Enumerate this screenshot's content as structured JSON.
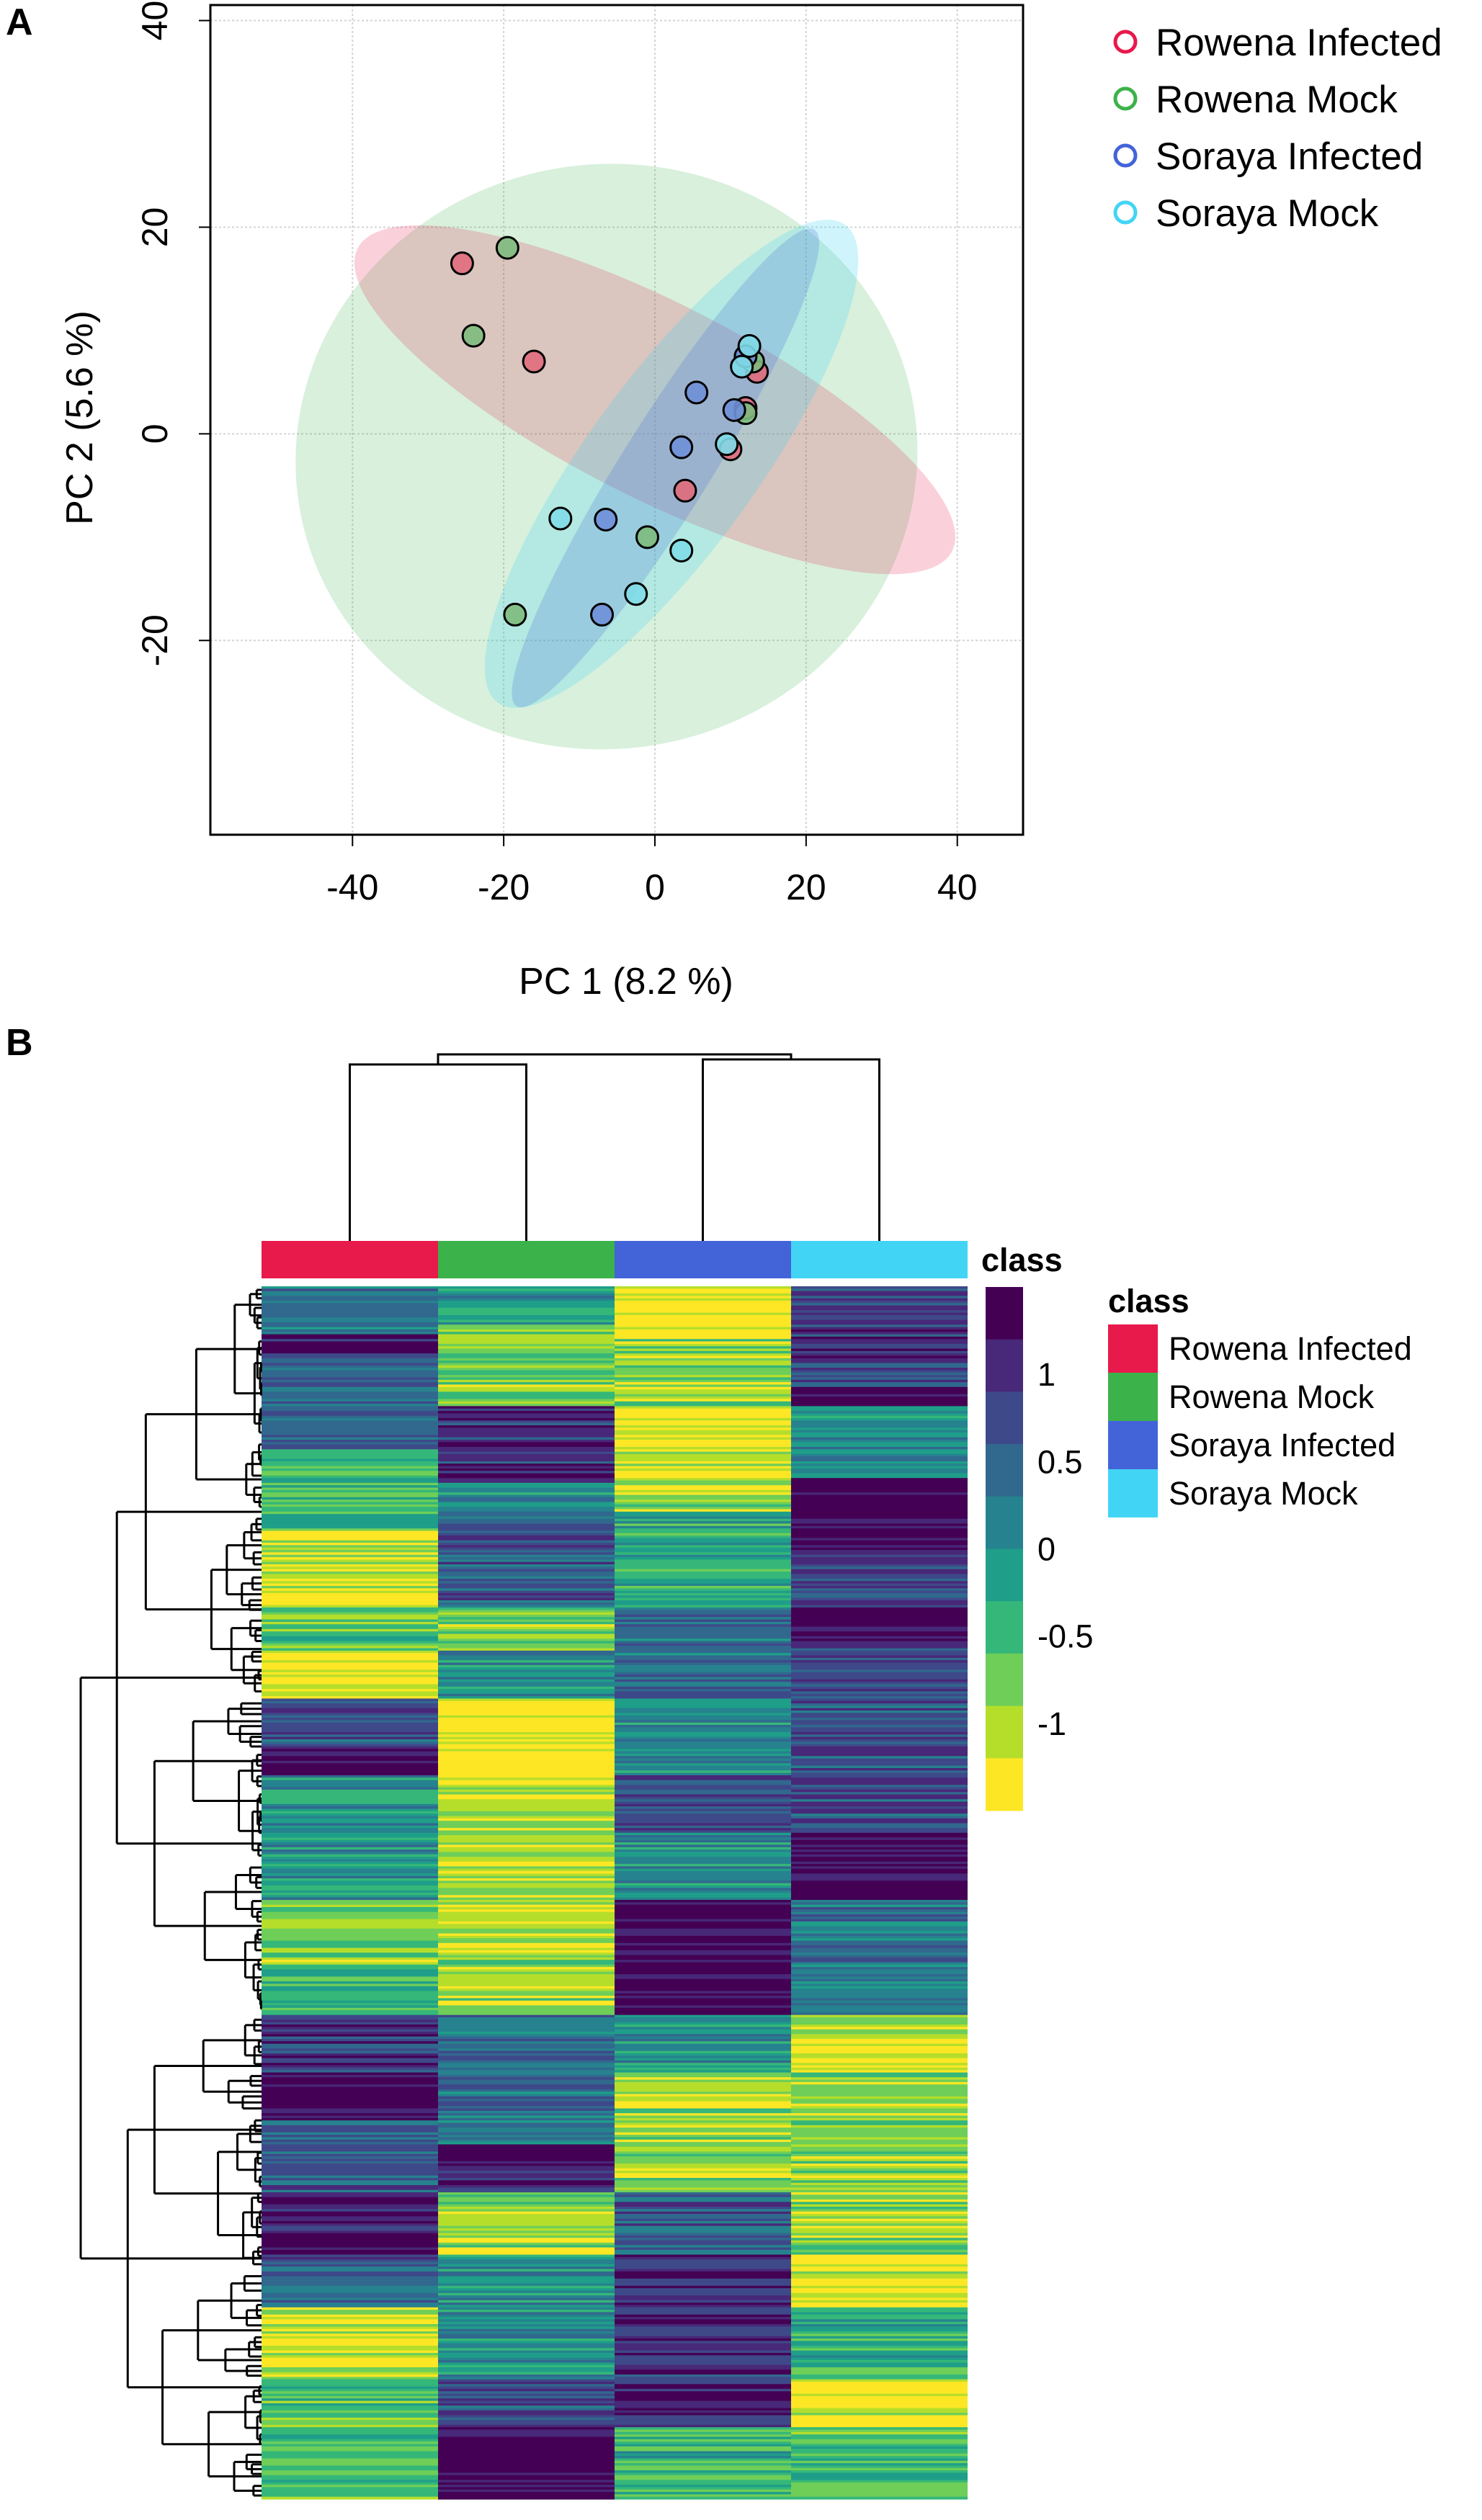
{
  "chart_data": [
    {
      "panel": "A",
      "type": "scatter",
      "xlabel": "PC 1 (8.2 %)",
      "ylabel": "PC 2 (5.6 %)",
      "xlim": [
        -58.8,
        48.7
      ],
      "ylim": [
        -38.8,
        41.5
      ],
      "xticks": [
        -40,
        -20,
        0,
        20,
        40
      ],
      "yticks": [
        -20,
        0,
        20,
        40
      ],
      "grid": true,
      "legend_position": "top-right",
      "series": [
        {
          "name": "Rowena Infected",
          "color": "#e8194b",
          "fill": "#e06b7c",
          "points": [
            [
              -25.5,
              16.5
            ],
            [
              -16,
              7
            ],
            [
              4,
              -5.5
            ],
            [
              13.5,
              6
            ],
            [
              12,
              2.5
            ],
            [
              10,
              -1.5
            ]
          ]
        },
        {
          "name": "Rowena Mock",
          "color": "#3cb24a",
          "fill": "#7dbb7d",
          "points": [
            [
              -19.5,
              18
            ],
            [
              -24,
              9.5
            ],
            [
              -1,
              -10
            ],
            [
              -18.5,
              -17.5
            ],
            [
              13,
              7
            ],
            [
              12,
              2
            ]
          ]
        },
        {
          "name": "Soraya Infected",
          "color": "#4363d8",
          "fill": "#6f8fd8",
          "points": [
            [
              5.5,
              4
            ],
            [
              3.5,
              -1.3
            ],
            [
              10.5,
              2.3
            ],
            [
              -6.5,
              -8.3
            ],
            [
              -7,
              -17.5
            ],
            [
              12,
              7.5
            ]
          ]
        },
        {
          "name": "Soraya Mock",
          "color": "#42d4f4",
          "fill": "#7fdbe8",
          "points": [
            [
              -12.5,
              -8.2
            ],
            [
              3.5,
              -11.3
            ],
            [
              -2.5,
              -15.5
            ],
            [
              9.5,
              -1
            ],
            [
              12.5,
              8.5
            ],
            [
              11.5,
              6.5
            ]
          ]
        }
      ]
    },
    {
      "panel": "B",
      "type": "heatmap",
      "columns": [
        "Rowena Infected",
        "Rowena Mock",
        "Soraya Infected",
        "Soraya Mock"
      ],
      "annotation_title": "class",
      "legend_title": "class",
      "colorbar_ticks": [
        "1",
        "0.5",
        "0",
        "-0.5",
        "-1"
      ],
      "colorbar_range": [
        -1.5,
        1.5
      ],
      "colorbar_colors": [
        "#440154",
        "#482878",
        "#3e4989",
        "#31688e",
        "#26828e",
        "#1f9e89",
        "#35b779",
        "#6ece58",
        "#b5de2b",
        "#fde725"
      ],
      "total_rows": 506,
      "column_blocks": [
        [
          [
            20,
            0.3
          ],
          [
            8,
            1.2
          ],
          [
            40,
            0.5
          ],
          [
            34,
            -0.5
          ],
          [
            18,
            -1
          ],
          [
            14,
            -1.3
          ],
          [
            18,
            -0.7
          ],
          [
            20,
            -1.4
          ],
          [
            20,
            0.7
          ],
          [
            12,
            1.3
          ],
          [
            52,
            0
          ],
          [
            28,
            -0.9
          ],
          [
            20,
            -0.5
          ],
          [
            24,
            0.9
          ],
          [
            20,
            1.4
          ],
          [
            30,
            0.5
          ],
          [
            26,
            1.3
          ],
          [
            22,
            0.5
          ],
          [
            30,
            -1.2
          ],
          [
            50,
            -0.6
          ]
        ],
        [
          [
            16,
            0
          ],
          [
            34,
            -0.8
          ],
          [
            32,
            1.0
          ],
          [
            12,
            0.1
          ],
          [
            40,
            0.6
          ],
          [
            18,
            -0.8
          ],
          [
            20,
            0
          ],
          [
            32,
            -1.4
          ],
          [
            52,
            -1.1
          ],
          [
            48,
            -0.9
          ],
          [
            54,
            0.4
          ],
          [
            20,
            1.3
          ],
          [
            26,
            -1.0
          ],
          [
            52,
            0
          ],
          [
            20,
            0.7
          ],
          [
            30,
            1.4
          ]
        ],
        [
          [
            22,
            -1.4
          ],
          [
            28,
            -0.9
          ],
          [
            18,
            -1.4
          ],
          [
            26,
            -1.0
          ],
          [
            40,
            -0.3
          ],
          [
            38,
            0.4
          ],
          [
            32,
            0
          ],
          [
            24,
            0.8
          ],
          [
            28,
            0
          ],
          [
            48,
            1.4
          ],
          [
            24,
            0
          ],
          [
            50,
            -1.0
          ],
          [
            26,
            0.5
          ],
          [
            22,
            1.1
          ],
          [
            50,
            1.0
          ],
          [
            30,
            -0.4
          ]
        ],
        [
          [
            42,
            0.8
          ],
          [
            8,
            1.4
          ],
          [
            30,
            0
          ],
          [
            30,
            1.4
          ],
          [
            24,
            0.8
          ],
          [
            14,
            1.4
          ],
          [
            80,
            0.7
          ],
          [
            28,
            1.3
          ],
          [
            48,
            0.3
          ],
          [
            10,
            -1.0
          ],
          [
            14,
            -1.4
          ],
          [
            76,
            -0.9
          ],
          [
            22,
            -1.2
          ],
          [
            30,
            -0.4
          ],
          [
            20,
            -1.3
          ],
          [
            30,
            -0.5
          ]
        ]
      ]
    }
  ],
  "panels": {
    "a_label": "A",
    "b_label": "B"
  }
}
